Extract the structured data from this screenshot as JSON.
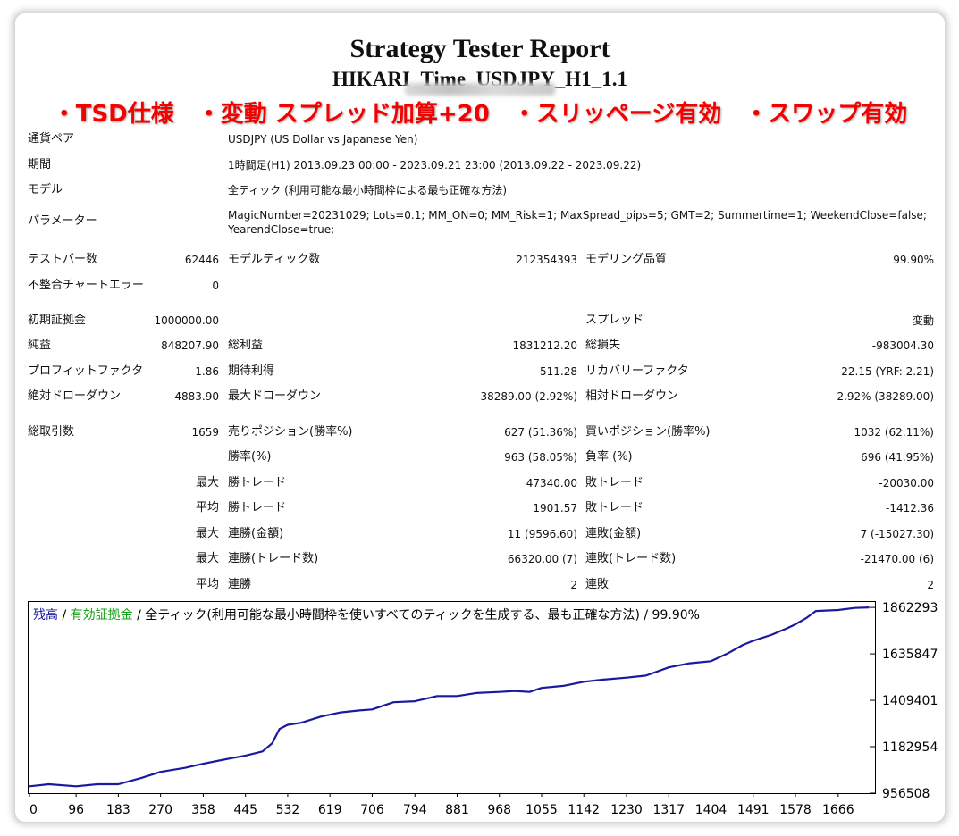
{
  "report": {
    "title": "Strategy Tester Report",
    "subtitle": "HIKARI_Time_USDJPY_H1_1.1",
    "banner": "・TSD仕様　・変動 スプレッド加算+20　・スリッページ有効　・スワップ有効"
  },
  "info": {
    "symbol_label": "通貨ペア",
    "symbol_value": "USDJPY (US Dollar vs Japanese Yen)",
    "period_label": "期間",
    "period_value": "1時間足(H1) 2013.09.23 00:00 - 2023.09.21 23:00 (2013.09.22 - 2023.09.22)",
    "model_label": "モデル",
    "model_value": "全ティック (利用可能な最小時間枠による最も正確な方法)",
    "params_label": "パラメーター",
    "params_line1": "MagicNumber=20231029; Lots=0.1; MM_ON=0; MM_Risk=1; MaxSpread_pips=5; GMT=2; Summertime=1; WeekendClose=false;",
    "params_line2": "YearendClose=true;"
  },
  "stats": {
    "bars_label": "テストバー数",
    "bars_value": "62446",
    "ticks_label": "モデルティック数",
    "ticks_value": "212354393",
    "quality_label": "モデリング品質",
    "quality_value": "99.90%",
    "mismatch_label": "不整合チャートエラー",
    "mismatch_value": "0",
    "deposit_label": "初期証拠金",
    "deposit_value": "1000000.00",
    "spread_label": "スプレッド",
    "spread_value": "変動",
    "net_label": "純益",
    "net_value": "848207.90",
    "gross_profit_label": "総利益",
    "gross_profit_value": "1831212.20",
    "gross_loss_label": "総損失",
    "gross_loss_value": "-983004.30",
    "pf_label": "プロフィットファクタ",
    "pf_value": "1.86",
    "expected_label": "期待利得",
    "expected_value": "511.28",
    "recovery_label": "リカバリーファクタ",
    "recovery_value": "22.15 (YRF: 2.21)",
    "abs_dd_label": "絶対ドローダウン",
    "abs_dd_value": "4883.90",
    "max_dd_label": "最大ドローダウン",
    "max_dd_value": "38289.00 (2.92%)",
    "rel_dd_label": "相対ドローダウン",
    "rel_dd_value": "2.92% (38289.00)",
    "trades_label": "総取引数",
    "trades_value": "1659",
    "short_label": "売りポジション(勝率%)",
    "short_value": "627 (51.36%)",
    "long_label": "買いポジション(勝率%)",
    "long_value": "1032 (62.11%)",
    "win_label": "勝率(%)",
    "win_value": "963 (58.05%)",
    "loss_label": "負率 (%)",
    "loss_value": "696 (41.95%)",
    "max_label": "最大",
    "avg_label": "平均",
    "largest_win_label": "勝トレード",
    "largest_win_value": "47340.00",
    "largest_loss_label": "敗トレード",
    "largest_loss_value": "-20030.00",
    "avg_win_label": "勝トレード",
    "avg_win_value": "1901.57",
    "avg_loss_label": "敗トレード",
    "avg_loss_value": "-1412.36",
    "cons_wins_money_label": "連勝(金額)",
    "cons_wins_money_value": "11 (9596.60)",
    "cons_losses_money_label": "連敗(金額)",
    "cons_losses_money_value": "7 (-15027.30)",
    "cons_wins_count_label": "連勝(トレード数)",
    "cons_wins_count_value": "66320.00 (7)",
    "cons_losses_count_label": "連敗(トレード数)",
    "cons_losses_count_value": "-21470.00 (6)",
    "avg_cons_wins_label": "連勝",
    "avg_cons_wins_value": "2",
    "avg_cons_losses_label": "連敗",
    "avg_cons_losses_value": "2"
  },
  "chart_data": {
    "type": "line",
    "legend": {
      "balance": "残高",
      "sep": " / ",
      "equity": "有効証拠金",
      "rest": " / 全ティック(利用可能な最小時間枠を使いすべてのティックを生成する、最も正確な方法) / 99.90%"
    },
    "colors": {
      "line": "#1a1aa0",
      "balance_text": "#1a1aa0",
      "equity_text": "#12a012",
      "axis": "#000000"
    },
    "x_ticks": [
      0,
      96,
      183,
      270,
      358,
      445,
      532,
      619,
      706,
      794,
      881,
      968,
      1055,
      1142,
      1230,
      1317,
      1404,
      1491,
      1578,
      1666
    ],
    "y_ticks": [
      956508,
      1182954,
      1409401,
      1635847,
      1862293
    ],
    "xlim": [
      0,
      1740
    ],
    "ylim": [
      956508,
      1889000
    ],
    "series": [
      {
        "x": [
          0,
          40,
          96,
          140,
          183,
          230,
          270,
          320,
          358,
          400,
          445,
          480,
          500,
          515,
          532,
          560,
          600,
          640,
          680,
          706,
          750,
          794,
          840,
          881,
          920,
          968,
          1000,
          1030,
          1055,
          1100,
          1142,
          1180,
          1230,
          1270,
          1317,
          1360,
          1404,
          1440,
          1470,
          1491,
          1530,
          1560,
          1578,
          1600,
          1620,
          1666,
          1700,
          1730
        ],
        "y": [
          990000,
          1000000,
          990000,
          1000000,
          1000000,
          1030000,
          1060000,
          1080000,
          1100000,
          1120000,
          1140000,
          1160000,
          1200000,
          1270000,
          1290000,
          1300000,
          1330000,
          1350000,
          1360000,
          1365000,
          1400000,
          1405000,
          1430000,
          1430000,
          1445000,
          1450000,
          1455000,
          1450000,
          1470000,
          1480000,
          1500000,
          1510000,
          1520000,
          1530000,
          1570000,
          1590000,
          1600000,
          1640000,
          1680000,
          1700000,
          1730000,
          1760000,
          1780000,
          1810000,
          1845000,
          1850000,
          1860000,
          1862293
        ]
      }
    ]
  }
}
